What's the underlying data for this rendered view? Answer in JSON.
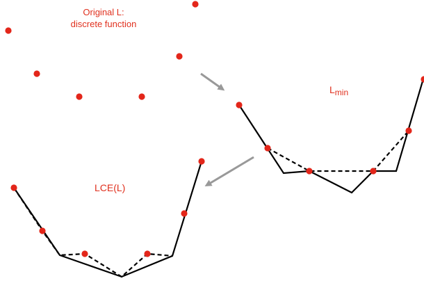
{
  "labels": {
    "original_line1": "Original L:",
    "original_line2": "discrete function",
    "lmin_main": "L",
    "lmin_sub": "min",
    "lce": "LCE(L)"
  },
  "colors": {
    "point": "#e3261a",
    "line": "#000000",
    "arrow": "#999999",
    "label": "#e0301e"
  },
  "legend": {
    "original_points": "Original L: discrete function",
    "lmin_curve": "Lmin",
    "lce_curve": "LCE(L)"
  }
}
